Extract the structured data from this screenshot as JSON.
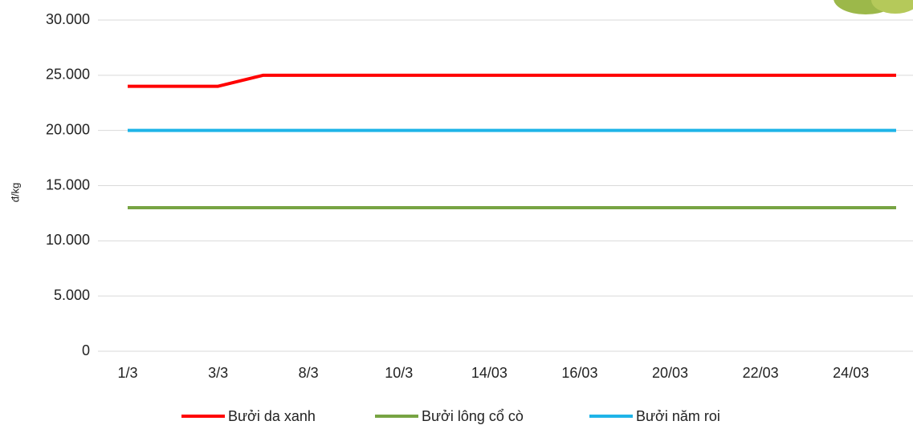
{
  "chart_data": {
    "type": "line",
    "y_label": "đ/kg",
    "categories": [
      "1/3",
      null,
      "3/3",
      null,
      "8/3",
      null,
      "10/3",
      null,
      "14/03",
      null,
      "16/03",
      null,
      "20/03",
      null,
      "22/03",
      null,
      "24/03",
      null
    ],
    "series": [
      {
        "name": "Bưởi da xanh",
        "color": "#ff0000",
        "values": [
          24000,
          24000,
          24000,
          25000,
          25000,
          25000,
          25000,
          25000,
          25000,
          25000,
          25000,
          25000,
          25000,
          25000,
          25000,
          25000,
          25000,
          25000
        ]
      },
      {
        "name": "Bưởi lông cổ cò",
        "color": "#77a443",
        "values": [
          13000,
          13000,
          13000,
          13000,
          13000,
          13000,
          13000,
          13000,
          13000,
          13000,
          13000,
          13000,
          13000,
          13000,
          13000,
          13000,
          13000,
          13000
        ]
      },
      {
        "name": "Bưởi năm roi",
        "color": "#1fb4e8",
        "values": [
          20000,
          20000,
          20000,
          20000,
          20000,
          20000,
          20000,
          20000,
          20000,
          20000,
          20000,
          20000,
          20000,
          20000,
          20000,
          20000,
          20000,
          20000
        ]
      }
    ],
    "ylim": [
      0,
      30000
    ],
    "yticks": [
      0,
      {
        "value": 5000,
        "label": "5.000"
      },
      {
        "value": 10000,
        "label": "10.000"
      },
      {
        "value": 15000,
        "label": "15.000"
      },
      {
        "value": 20000,
        "label": "20.000"
      },
      {
        "value": 25000,
        "label": "25.000"
      },
      {
        "value": 30000,
        "label": "30.000"
      }
    ],
    "grid": true,
    "legend": "bottom"
  }
}
